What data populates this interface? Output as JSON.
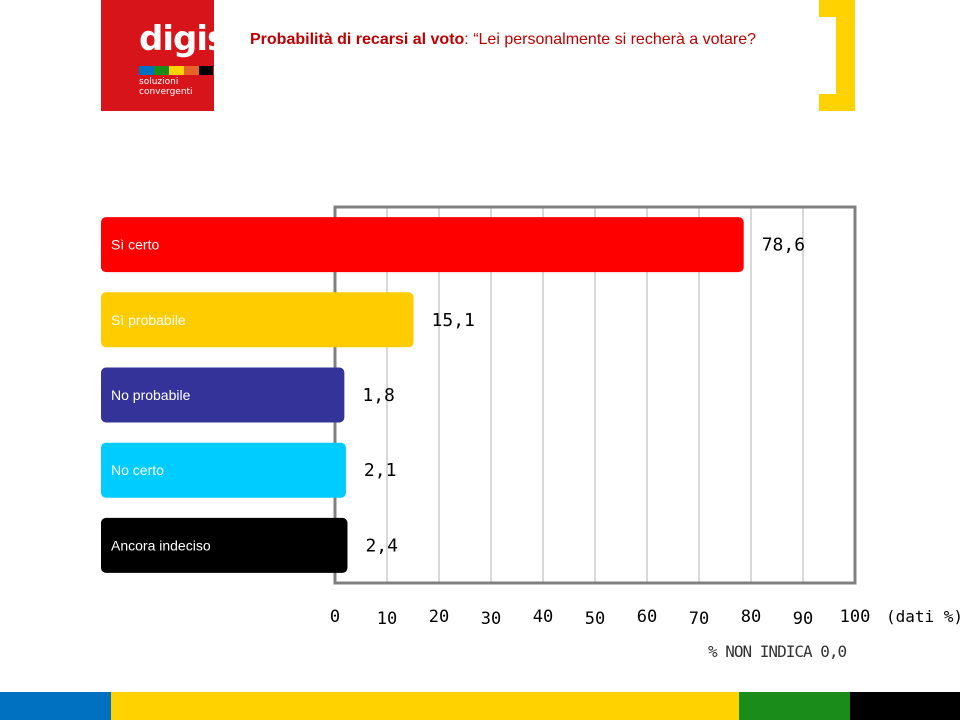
{
  "logo": {
    "word": "digis",
    "sub": "soluzioni\nconvergenti",
    "text": "digis soluzioni convergenti"
  },
  "header": {
    "title_bold": "Probabilità di recarsi al voto",
    "title_rest": ": “Lei personalmente si recherà a votare?"
  },
  "chart_data": {
    "type": "bar",
    "orientation": "horizontal",
    "categories": [
      "Sì certo",
      "Sì probabile",
      "No probabile",
      "No certo",
      "Ancora indeciso"
    ],
    "values": [
      78.6,
      15.1,
      1.8,
      2.1,
      2.4
    ],
    "value_labels": [
      "78,6",
      "15,1",
      "1,8",
      "2,1",
      "2,4"
    ],
    "colors": [
      "#ff0000",
      "#ffcc00",
      "#333399",
      "#00ccff",
      "#000000"
    ],
    "xlim": [
      0,
      100
    ],
    "x_ticks": [
      "0",
      "10",
      "20",
      "30",
      "40",
      "50",
      "60",
      "70",
      "80",
      "90",
      "100"
    ],
    "x_unit": "(dati %)",
    "grid": true
  },
  "note": "% NON INDICA 0,0",
  "colors": {
    "brand_red": "#d7141a",
    "accent_yellow": "#ffd200",
    "title_red": "#c00000",
    "footer": [
      "#0070c0",
      "#ffd200",
      "#1a8c1a",
      "#000000"
    ]
  }
}
